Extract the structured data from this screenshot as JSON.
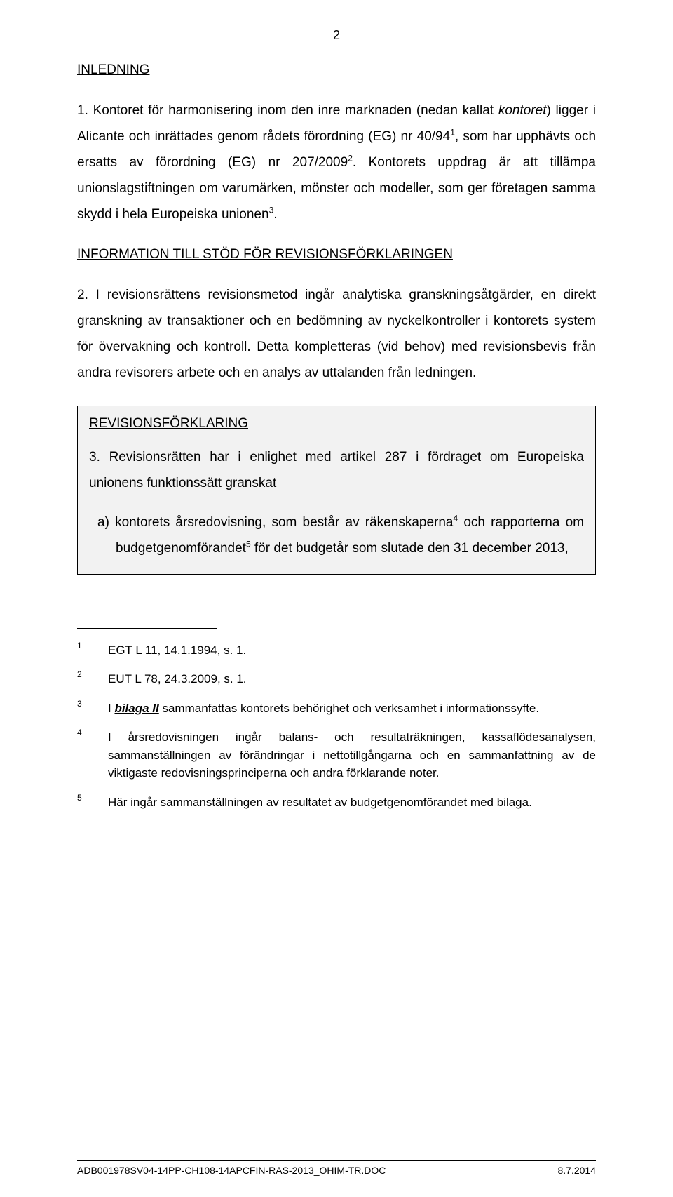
{
  "page_number": "2",
  "headings": {
    "inledning": "INLEDNING",
    "information": "INFORMATION TILL STÖD FÖR REVISIONSFÖRKLARINGEN",
    "revision": "REVISIONSFÖRKLARING"
  },
  "paragraphs": {
    "p1_a": "1. Kontoret för harmonisering inom den inre marknaden (nedan kallat ",
    "p1_b_italic": "kontoret",
    "p1_c": ") ligger i Alicante och inrättades genom rådets förordning (EG) nr 40/94",
    "p1_d": ", som har upphävts och ersatts av förordning (EG) nr 207/2009",
    "p1_e": ". Kontorets uppdrag är att tillämpa unionslagstiftningen om varumärken, mönster och modeller, som ger företagen samma skydd i hela Europeiska unionen",
    "p1_f": ".",
    "p2": "2. I revisionsrättens revisionsmetod ingår analytiska granskningsåtgärder, en direkt granskning av transaktioner och en bedömning av nyckelkontroller i kontorets system för övervakning och kontroll. Detta kompletteras (vid behov) med revisionsbevis från andra revisorers arbete och en analys av uttalanden från ledningen.",
    "p3": "3. Revisionsrätten har i enlighet med artikel 287 i fördraget om Europeiska unionens funktionssätt granskat",
    "p3a_a": "a)  kontorets årsredovisning, som består av räkenskaperna",
    "p3a_b": " och rapporterna om budgetgenomförandet",
    "p3a_c": " för det budgetår som slutade den 31 december 2013,"
  },
  "sup": {
    "s1": "1",
    "s2": "2",
    "s3": "3",
    "s4": "4",
    "s5": "5"
  },
  "footnotes": {
    "fn1": {
      "num": "1",
      "text": "EGT L 11, 14.1.1994, s. 1."
    },
    "fn2": {
      "num": "2",
      "text": "EUT L 78, 24.3.2009, s. 1."
    },
    "fn3": {
      "num": "3",
      "pre": "I ",
      "bold": "bilaga II",
      "post": " sammanfattas kontorets behörighet och verksamhet i informationssyfte."
    },
    "fn4": {
      "num": "4",
      "text": "I årsredovisningen ingår balans- och resultaträkningen, kassaflödesanalysen, sammanställningen av förändringar i nettotillgångarna och en sammanfattning av de viktigaste redovisningsprinciperna och andra förklarande noter."
    },
    "fn5": {
      "num": "5",
      "text": "Här ingår sammanställningen av resultatet av budgetgenomförandet med bilaga."
    }
  },
  "footer": {
    "left": "ADB001978SV04-14PP-CH108-14APCFIN-RAS-2013_OHIM-TR.DOC",
    "right": "8.7.2014"
  },
  "colors": {
    "box_bg": "#f2f2f2",
    "box_border": "#000000",
    "text": "#000000",
    "page_bg": "#ffffff"
  }
}
